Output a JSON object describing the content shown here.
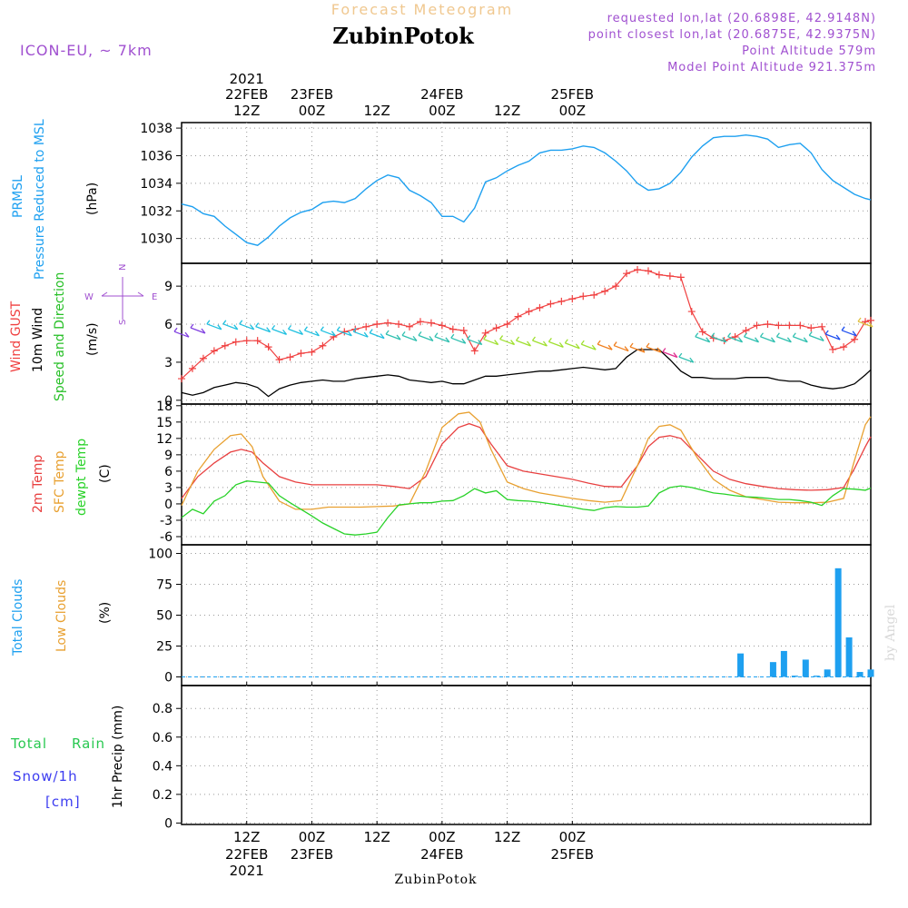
{
  "header": {
    "title": "Forecast Meteogram",
    "station": "ZubinPotok",
    "model": "ICON-EU, ~ 7km",
    "requested": "requested lon,lat (20.6898E, 42.9148N)",
    "closest": "point closest lon,lat (20.6875E, 42.9375N)",
    "altitude": "Point Altitude 579m",
    "model_altitude": "Model Point Altitude 921.375m",
    "credit": "by Angel",
    "footer_station": "ZubinPotok"
  },
  "colors": {
    "pressure": "#1ea0f0",
    "gust": "#f04040",
    "wind": "#000000",
    "t2m": "#e84040",
    "sfc": "#e8a030",
    "dewpt": "#28d228",
    "total_clouds": "#1ea0f0",
    "low_clouds": "#e8a030",
    "rain": "#28c850",
    "snow": "#3c3cf0",
    "accent": "#a050d0"
  },
  "time_axis": {
    "start_hour": 0,
    "end_hour": 0,
    "top_ticks": [
      {
        "year": "2021",
        "day": "22FEB",
        "hour": "12Z"
      },
      {
        "year": "",
        "day": "23FEB",
        "hour": "00Z"
      },
      {
        "year": "",
        "day": "",
        "hour": "12Z"
      },
      {
        "year": "",
        "day": "24FEB",
        "hour": "00Z"
      },
      {
        "year": "",
        "day": "",
        "hour": "12Z"
      },
      {
        "year": "",
        "day": "25FEB",
        "hour": "00Z"
      }
    ],
    "bottom_ticks": [
      {
        "hour": "12Z",
        "day": "22FEB",
        "year": "2021"
      },
      {
        "hour": "00Z",
        "day": "23FEB",
        "year": ""
      },
      {
        "hour": "12Z",
        "day": "",
        "year": ""
      },
      {
        "hour": "00Z",
        "day": "24FEB",
        "year": ""
      },
      {
        "hour": "12Z",
        "day": "",
        "year": ""
      },
      {
        "hour": "00Z",
        "day": "25FEB",
        "year": ""
      }
    ]
  },
  "chart_data": [
    {
      "type": "line",
      "panel": "pressure",
      "labels": [
        "PRMSL",
        "Pressure Reduced to MSL"
      ],
      "units": "(hPa)",
      "yticks": [
        "1030",
        "1032",
        "1034",
        "1036",
        "1038"
      ],
      "ylim": [
        1028.2,
        1038.4
      ],
      "series": [
        {
          "name": "PRMSL",
          "x": [
            0,
            2,
            4,
            6,
            8,
            10,
            12,
            14,
            16,
            18,
            20,
            22,
            24,
            26,
            28,
            30,
            32,
            34,
            36,
            38,
            40,
            42,
            44,
            46,
            48,
            50,
            52,
            54,
            56,
            58,
            60,
            62,
            64,
            66,
            68,
            70,
            72,
            74,
            76,
            78,
            80,
            82,
            84,
            86,
            88,
            90,
            92,
            94,
            96,
            98,
            100,
            102,
            104,
            106,
            108,
            110,
            112,
            114,
            116,
            118,
            120,
            122,
            124,
            126,
            127
          ],
          "y": [
            1032.5,
            1032.3,
            1031.8,
            1031.6,
            1030.9,
            1030.3,
            1029.7,
            1029.5,
            1030.1,
            1030.9,
            1031.5,
            1031.9,
            1032.1,
            1032.6,
            1032.7,
            1032.6,
            1032.9,
            1033.6,
            1034.2,
            1034.6,
            1034.4,
            1033.5,
            1033.1,
            1032.6,
            1031.6,
            1031.6,
            1031.2,
            1032.2,
            1034.1,
            1034.4,
            1034.9,
            1035.3,
            1035.6,
            1036.2,
            1036.4,
            1036.4,
            1036.5,
            1036.7,
            1036.6,
            1036.2,
            1035.6,
            1034.9,
            1034.0,
            1033.5,
            1033.6,
            1034.0,
            1034.8,
            1035.9,
            1036.7,
            1037.3,
            1037.4,
            1037.4,
            1037.5,
            1037.4,
            1037.2,
            1036.6,
            1036.8,
            1036.9,
            1036.2,
            1035.0,
            1034.2,
            1033.7,
            1033.2,
            1032.9,
            1032.8
          ]
        }
      ]
    },
    {
      "type": "line",
      "panel": "wind",
      "labels": [
        "Wind GUST",
        "10m Wind",
        "Speed and Direction"
      ],
      "units": "(m/s)",
      "compass": {
        "n": "N",
        "s": "S",
        "w": "W",
        "e": "E"
      },
      "yticks": [
        "0",
        "3",
        "6",
        "9"
      ],
      "ylim": [
        -0.3,
        10.8
      ],
      "series": [
        {
          "name": "Wind GUST",
          "x": [
            0,
            2,
            4,
            6,
            8,
            10,
            12,
            14,
            16,
            18,
            20,
            22,
            24,
            26,
            28,
            30,
            32,
            34,
            36,
            38,
            40,
            42,
            44,
            46,
            48,
            50,
            52,
            54,
            56,
            58,
            60,
            62,
            64,
            66,
            68,
            70,
            72,
            74,
            76,
            78,
            80,
            82,
            84,
            86,
            88,
            90,
            92,
            94,
            96,
            98,
            100,
            102,
            104,
            106,
            108,
            110,
            112,
            114,
            116,
            118,
            120,
            122,
            124,
            126,
            127
          ],
          "y": [
            1.7,
            2.5,
            3.3,
            3.9,
            4.3,
            4.6,
            4.7,
            4.7,
            4.2,
            3.2,
            3.4,
            3.7,
            3.8,
            4.3,
            5.0,
            5.4,
            5.6,
            5.8,
            6.0,
            6.1,
            6.0,
            5.8,
            6.2,
            6.1,
            5.9,
            5.6,
            5.5,
            3.9,
            5.3,
            5.7,
            6.0,
            6.6,
            7.0,
            7.3,
            7.6,
            7.8,
            8.0,
            8.2,
            8.3,
            8.6,
            9.0,
            10.0,
            10.3,
            10.2,
            9.9,
            9.8,
            9.7,
            7.0,
            5.4,
            4.9,
            4.7,
            5.0,
            5.5,
            5.9,
            6.0,
            5.9,
            5.9,
            5.9,
            5.7,
            5.8,
            4.0,
            4.2,
            4.8,
            6.2,
            6.3
          ]
        },
        {
          "name": "10m Wind",
          "x": [
            0,
            2,
            4,
            6,
            8,
            10,
            12,
            14,
            16,
            18,
            20,
            22,
            24,
            26,
            28,
            30,
            32,
            34,
            36,
            38,
            40,
            42,
            44,
            46,
            48,
            50,
            52,
            54,
            56,
            58,
            60,
            62,
            64,
            66,
            68,
            70,
            72,
            74,
            76,
            78,
            80,
            82,
            84,
            86,
            88,
            90,
            92,
            94,
            96,
            98,
            100,
            102,
            104,
            106,
            108,
            110,
            112,
            114,
            116,
            118,
            120,
            122,
            124,
            126,
            127
          ],
          "y": [
            0.6,
            0.4,
            0.6,
            1.0,
            1.2,
            1.4,
            1.3,
            1.0,
            0.3,
            0.9,
            1.2,
            1.4,
            1.5,
            1.6,
            1.5,
            1.5,
            1.7,
            1.8,
            1.9,
            2.0,
            1.9,
            1.6,
            1.5,
            1.4,
            1.5,
            1.3,
            1.3,
            1.6,
            1.9,
            1.9,
            2.0,
            2.1,
            2.2,
            2.3,
            2.3,
            2.4,
            2.5,
            2.6,
            2.5,
            2.4,
            2.5,
            3.4,
            4.0,
            4.0,
            4.0,
            3.2,
            2.3,
            1.8,
            1.8,
            1.7,
            1.7,
            1.7,
            1.8,
            1.8,
            1.8,
            1.6,
            1.5,
            1.5,
            1.2,
            1.0,
            0.9,
            1.0,
            1.3,
            2.0,
            2.4
          ]
        },
        {
          "name": "Speed and Direction",
          "x": [
            0,
            3,
            6,
            9,
            12,
            15,
            18,
            21,
            24,
            27,
            30,
            33,
            36,
            39,
            42,
            45,
            48,
            51,
            54,
            57,
            60,
            63,
            66,
            69,
            72,
            75,
            78,
            81,
            84,
            87,
            90,
            93,
            96,
            99,
            102,
            105,
            108,
            111,
            114,
            117,
            120,
            123,
            126
          ],
          "y": [
            5.2,
            5.5,
            5.8,
            5.8,
            5.8,
            5.6,
            5.4,
            5.4,
            5.3,
            5.3,
            5.3,
            5.2,
            5.1,
            5.0,
            4.9,
            4.9,
            4.8,
            4.7,
            4.6,
            4.6,
            4.6,
            4.5,
            4.5,
            4.4,
            4.3,
            4.2,
            4.2,
            4.1,
            4.0,
            4.0,
            3.6,
            3.2,
            4.8,
            4.8,
            4.8,
            4.8,
            4.8,
            4.8,
            4.8,
            4.9,
            5.0,
            5.3,
            6.0
          ]
        }
      ]
    },
    {
      "type": "line",
      "panel": "temperature",
      "labels": [
        "2m Temp",
        "SFC Temp",
        "dewpt Temp"
      ],
      "units": "(C)",
      "yticks": [
        "-6",
        "-3",
        "0",
        "3",
        "6",
        "9",
        "12",
        "15",
        "18"
      ],
      "ylim": [
        -7.5,
        18.3
      ],
      "series": [
        {
          "name": "2m Temp",
          "x": [
            0,
            3,
            6,
            9,
            11,
            13,
            15,
            18,
            21,
            24,
            27,
            30,
            33,
            36,
            39,
            42,
            45,
            48,
            51,
            53,
            55,
            57,
            60,
            63,
            66,
            69,
            72,
            75,
            78,
            81,
            84,
            86,
            88,
            90,
            92,
            95,
            98,
            101,
            104,
            107,
            110,
            113,
            116,
            119,
            122,
            124,
            126,
            127
          ],
          "y": [
            1.0,
            5.0,
            7.5,
            9.5,
            10.0,
            9.5,
            7.5,
            5.0,
            4.0,
            3.5,
            3.5,
            3.5,
            3.5,
            3.5,
            3.2,
            2.8,
            5.0,
            11.0,
            14.0,
            14.7,
            14.0,
            11.0,
            7.0,
            6.0,
            5.5,
            5.0,
            4.5,
            3.8,
            3.2,
            3.1,
            7.0,
            10.5,
            12.2,
            12.5,
            12.0,
            9.0,
            6.0,
            4.5,
            3.7,
            3.2,
            2.8,
            2.6,
            2.5,
            2.6,
            3.0,
            6.5,
            10.5,
            12.3
          ]
        },
        {
          "name": "SFC Temp",
          "x": [
            0,
            3,
            6,
            9,
            11,
            13,
            15,
            18,
            21,
            24,
            27,
            30,
            33,
            36,
            39,
            42,
            45,
            48,
            51,
            53,
            55,
            57,
            60,
            63,
            66,
            69,
            72,
            75,
            78,
            81,
            84,
            86,
            88,
            90,
            92,
            95,
            98,
            101,
            104,
            107,
            110,
            113,
            116,
            119,
            122,
            124,
            126,
            127
          ],
          "y": [
            -0.3,
            6.0,
            10.0,
            12.5,
            12.8,
            10.5,
            5.0,
            0.5,
            -1.0,
            -1.0,
            -0.6,
            -0.6,
            -0.6,
            -0.5,
            -0.4,
            0.0,
            6.0,
            14.0,
            16.5,
            16.8,
            15.0,
            10.0,
            4.0,
            2.8,
            2.0,
            1.5,
            1.0,
            0.6,
            0.3,
            0.6,
            7.0,
            12.0,
            14.2,
            14.5,
            13.5,
            8.5,
            4.5,
            2.5,
            1.3,
            0.8,
            0.3,
            0.2,
            0.2,
            0.3,
            1.0,
            8.0,
            14.5,
            16.0
          ]
        },
        {
          "name": "dewpt Temp",
          "x": [
            0,
            2,
            4,
            6,
            8,
            10,
            12,
            14,
            16,
            18,
            20,
            22,
            24,
            26,
            28,
            30,
            32,
            34,
            36,
            38,
            40,
            42,
            44,
            46,
            48,
            50,
            52,
            54,
            56,
            58,
            60,
            62,
            64,
            66,
            68,
            70,
            72,
            74,
            76,
            78,
            80,
            82,
            84,
            86,
            88,
            90,
            92,
            94,
            96,
            98,
            100,
            102,
            104,
            106,
            108,
            110,
            112,
            114,
            116,
            118,
            120,
            122,
            124,
            126,
            127
          ],
          "y": [
            -2.5,
            -1.0,
            -1.8,
            0.5,
            1.5,
            3.5,
            4.2,
            4.0,
            3.8,
            1.5,
            0.2,
            -1.0,
            -2.2,
            -3.5,
            -4.5,
            -5.5,
            -5.7,
            -5.5,
            -5.2,
            -2.5,
            -0.2,
            0.0,
            0.2,
            0.2,
            0.5,
            0.6,
            1.5,
            2.8,
            2.0,
            2.4,
            0.8,
            0.6,
            0.5,
            0.3,
            0.0,
            -0.3,
            -0.6,
            -1.0,
            -1.2,
            -0.7,
            -0.5,
            -0.6,
            -0.6,
            -0.4,
            2.0,
            3.0,
            3.3,
            3.0,
            2.5,
            2.0,
            1.8,
            1.5,
            1.3,
            1.2,
            1.0,
            0.8,
            0.8,
            0.6,
            0.3,
            -0.3,
            1.5,
            2.8,
            2.7,
            2.5,
            2.9
          ]
        }
      ]
    },
    {
      "type": "bar",
      "panel": "clouds",
      "labels": [
        "Total Clouds",
        "Low Clouds"
      ],
      "units": "(%)",
      "yticks": [
        "0",
        "25",
        "50",
        "75",
        "100"
      ],
      "ylim": [
        -7,
        107
      ],
      "series": [
        {
          "name": "Total Clouds",
          "x": [
            103,
            109,
            111,
            113,
            115,
            117,
            119,
            121,
            123,
            125,
            127
          ],
          "y": [
            19,
            12,
            21,
            1,
            14,
            1,
            6,
            88,
            32,
            4,
            6
          ]
        },
        {
          "name": "Low Clouds",
          "x": [],
          "y": []
        }
      ]
    },
    {
      "type": "bar",
      "panel": "precip",
      "labels": [
        "Total",
        "Rain",
        "Snow/1h",
        "[cm]"
      ],
      "units": "1hr Precip (mm)",
      "yticks": [
        "0",
        "0.2",
        "0.4",
        "0.6",
        "0.8"
      ],
      "ylim": [
        -0.01,
        0.96
      ],
      "series": [
        {
          "name": "Total Rain",
          "x": [],
          "y": []
        }
      ]
    }
  ]
}
